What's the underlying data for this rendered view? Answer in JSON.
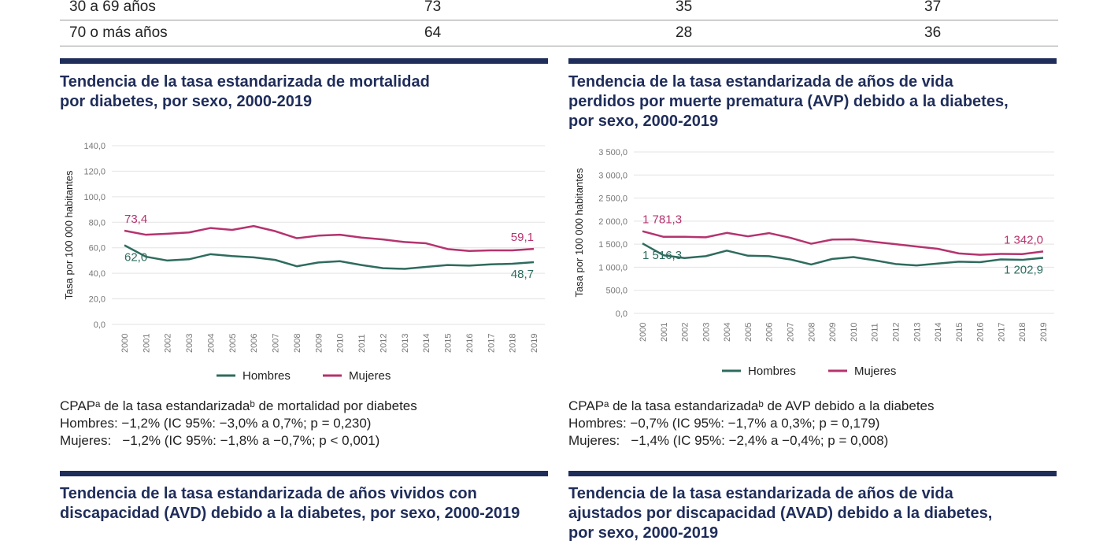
{
  "table": {
    "rows": [
      {
        "label": "30 a 69 años",
        "values": [
          "73",
          "35",
          "37"
        ]
      },
      {
        "label": "70 o más años",
        "values": [
          "64",
          "28",
          "36"
        ]
      }
    ]
  },
  "colors": {
    "hombres": "#2e6b5e",
    "mujeres": "#b5336e",
    "title": "#1f2d5a"
  },
  "chart_data": [
    {
      "type": "line",
      "title": "Tendencia de la tasa estandarizada de mortalidad por diabetes, por sexo, 2000-2019",
      "title_lines": [
        "Tendencia de la tasa estandarizada de mortalidad",
        "por diabetes, por sexo, 2000-2019"
      ],
      "ylabel": "Tasa por 100 000 habitantes",
      "ylim": [
        0,
        140
      ],
      "yticks": [
        "0,0",
        "20,0",
        "40,0",
        "60,0",
        "80,0",
        "100,0",
        "120,0",
        "140,0"
      ],
      "grid": true,
      "legend": "bottom",
      "x": [
        "2000",
        "2001",
        "2002",
        "2003",
        "2004",
        "2005",
        "2006",
        "2007",
        "2008",
        "2009",
        "2010",
        "2011",
        "2012",
        "2013",
        "2014",
        "2015",
        "2016",
        "2017",
        "2018",
        "2019"
      ],
      "series": [
        {
          "name": "Hombres",
          "color": "#2e6b5e",
          "values": [
            62.0,
            53,
            50,
            51,
            55,
            53.5,
            52.5,
            50.5,
            45.5,
            48.5,
            49.5,
            46.5,
            44,
            43.5,
            45,
            46.5,
            46,
            47,
            47.5,
            48.7
          ],
          "first_label": "62,0",
          "last_label": "48,7"
        },
        {
          "name": "Mujeres",
          "color": "#b5336e",
          "values": [
            73.4,
            70.2,
            71,
            72,
            75.5,
            74,
            77,
            73,
            67.5,
            69.5,
            70.2,
            68,
            66.5,
            64.5,
            63.5,
            59,
            57.5,
            58,
            58,
            59.1
          ],
          "first_label": "73,4",
          "last_label": "59,1"
        }
      ],
      "notes": [
        "CPAPᵃ de la tasa estandarizadaᵇ de mortalidad por diabetes",
        "Hombres: −1,2% (IC 95%: −3,0% a 0,7%; p = 0,230)",
        "Mujeres:   −1,2% (IC 95%: −1,8% a −0,7%; p < 0,001)"
      ]
    },
    {
      "type": "line",
      "title": "Tendencia de la tasa estandarizada de años de vida perdidos por muerte prematura (AVP) debido a la diabetes, por sexo, 2000-2019",
      "title_lines": [
        "Tendencia de la tasa estandarizada de años de vida",
        "perdidos por muerte prematura (AVP) debido a la diabetes,",
        "por sexo, 2000-2019"
      ],
      "ylabel": "Tasa por 100 000 habitantes",
      "ylim": [
        0,
        3500
      ],
      "yticks": [
        "0,0",
        "500,0",
        "1 000,0",
        "1 500,0",
        "2 000,0",
        "2 500,0",
        "3 000,0",
        "3 500,0"
      ],
      "grid": true,
      "legend": "bottom",
      "x": [
        "2000",
        "2001",
        "2002",
        "2003",
        "2004",
        "2005",
        "2006",
        "2007",
        "2008",
        "2009",
        "2010",
        "2011",
        "2012",
        "2013",
        "2014",
        "2015",
        "2016",
        "2017",
        "2018",
        "2019"
      ],
      "series": [
        {
          "name": "Hombres",
          "color": "#2e6b5e",
          "values": [
            1516.3,
            1260,
            1200,
            1240,
            1360,
            1250,
            1240,
            1170,
            1060,
            1180,
            1220,
            1150,
            1070,
            1040,
            1080,
            1120,
            1110,
            1170,
            1160,
            1202.9
          ],
          "first_label": "1 516,3",
          "last_label": "1 202,9"
        },
        {
          "name": "Mujeres",
          "color": "#b5336e",
          "values": [
            1781.3,
            1660,
            1660,
            1650,
            1745,
            1670,
            1740,
            1640,
            1510,
            1600,
            1605,
            1550,
            1500,
            1450,
            1400,
            1300,
            1270,
            1290,
            1285,
            1342.0
          ],
          "first_label": "1 781,3",
          "last_label": "1 342,0"
        }
      ],
      "notes": [
        "CPAPᵃ de la tasa estandarizadaᵇ de AVP debido a la diabetes",
        "Hombres: −0,7% (IC 95%: −1,7% a 0,3%; p = 0,179)",
        "Mujeres:   −1,4% (IC 95%: −2,4% a −0,4%; p = 0,008)"
      ]
    }
  ],
  "bottom_titles": [
    [
      "Tendencia de la tasa estandarizada de años vividos con",
      "discapacidad (AVD) debido a la diabetes, por sexo, 2000-2019"
    ],
    [
      "Tendencia de la tasa estandarizada de años de vida",
      "ajustados por discapacidad (AVAD) debido a la diabetes,",
      "por sexo, 2000-2019"
    ]
  ]
}
